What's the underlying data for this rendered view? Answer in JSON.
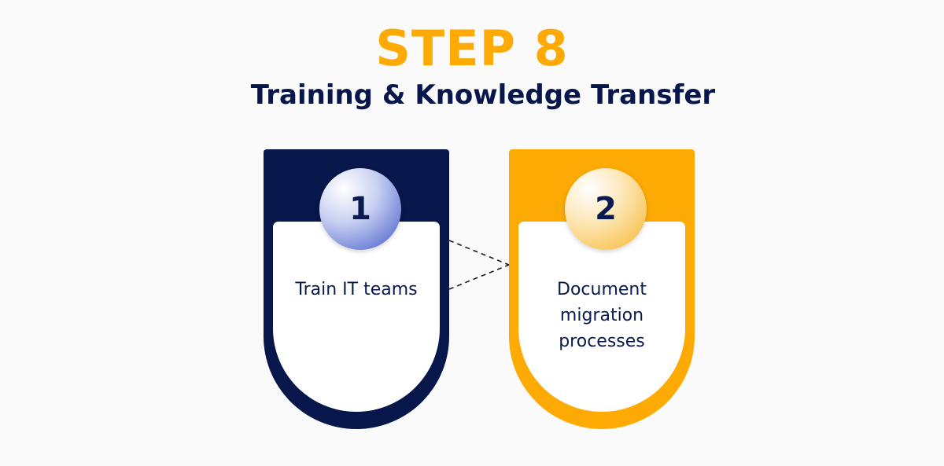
{
  "header": {
    "title": "STEP 8",
    "subtitle": "Training & Knowledge Transfer"
  },
  "steps": [
    {
      "number": "1",
      "text": "Train IT teams"
    },
    {
      "number": "2",
      "text": "Document migration processes"
    }
  ],
  "colors": {
    "accent": "#fdaa05",
    "navy": "#07174b",
    "badge_blue_light": "#ffffff",
    "badge_blue_dark": "#3f57c9",
    "badge_gold_light": "#ffffff",
    "badge_gold_dark": "#f6b62c",
    "connector": "#1a1a1a"
  }
}
